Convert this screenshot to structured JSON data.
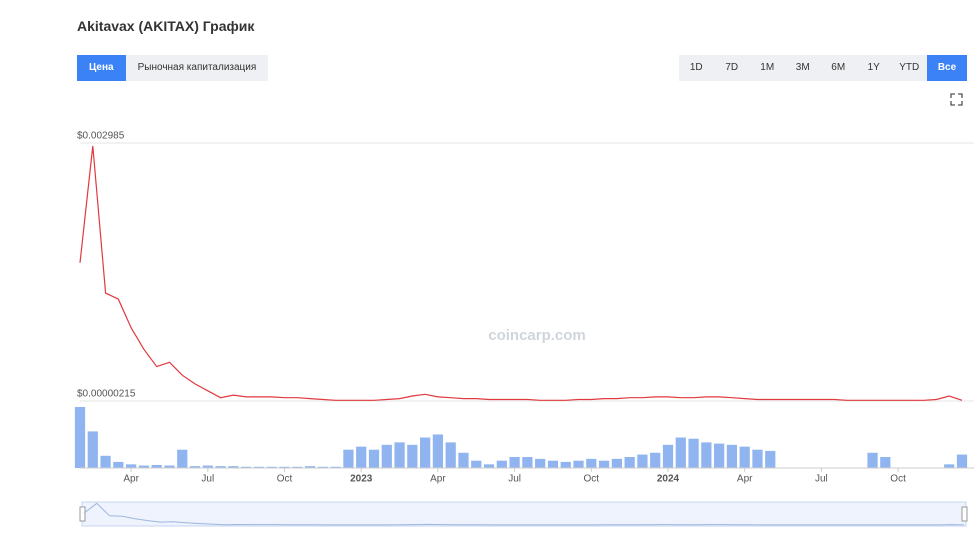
{
  "header": {
    "title": "Akitavax (AKITAX) График",
    "tabs": [
      "Цена",
      "Рыночная капитализация"
    ],
    "ranges": [
      "1D",
      "7D",
      "1M",
      "3M",
      "6M",
      "1Y",
      "YTD",
      "Все"
    ]
  },
  "watermark": "coincarp.com",
  "chart_data": [
    {
      "type": "line",
      "color": "#e0393e",
      "grid": true,
      "ylim": [
        2.15e-06,
        0.002985
      ],
      "yticks": [
        {
          "value": 2.15e-06,
          "label": "$0.00000215"
        },
        {
          "value": 0.002985,
          "label": "$0.002985"
        }
      ],
      "values": [
        0.0016,
        0.00295,
        0.00125,
        0.00118,
        0.00085,
        0.0006,
        0.0004,
        0.00045,
        0.0003,
        0.0002,
        0.00012,
        4e-05,
        7e-05,
        5e-05,
        5e-05,
        5e-05,
        4e-05,
        4e-05,
        3e-05,
        2e-05,
        1e-05,
        1e-05,
        1e-05,
        1e-05,
        2e-05,
        3e-05,
        6e-05,
        8e-05,
        5e-05,
        4e-05,
        3e-05,
        3e-05,
        2e-05,
        2e-05,
        2e-05,
        2e-05,
        1e-05,
        1e-05,
        1e-05,
        2e-05,
        2e-05,
        3e-05,
        3e-05,
        4e-05,
        4e-05,
        5e-05,
        5e-05,
        4e-05,
        4e-05,
        5e-05,
        5e-05,
        4e-05,
        3e-05,
        2e-05,
        2e-05,
        2e-05,
        2e-05,
        2e-05,
        2e-05,
        2e-05,
        1e-05,
        1e-05,
        1e-05,
        1e-05,
        1e-05,
        1e-05,
        1e-05,
        2e-05,
        6e-05,
        1e-05
      ]
    },
    {
      "type": "bar",
      "color": "#8fb4ef",
      "ylim": [
        0,
        100
      ],
      "categories": [
        null,
        null,
        null,
        null,
        "Apr",
        null,
        null,
        null,
        null,
        null,
        "Jul",
        null,
        null,
        null,
        null,
        null,
        "Oct",
        null,
        null,
        null,
        null,
        null,
        "2023",
        null,
        null,
        null,
        null,
        null,
        "Apr",
        null,
        null,
        null,
        null,
        null,
        "Jul",
        null,
        null,
        null,
        null,
        null,
        "Oct",
        null,
        null,
        null,
        null,
        null,
        "2024",
        null,
        null,
        null,
        null,
        null,
        "Apr",
        null,
        null,
        null,
        null,
        null,
        "Jul",
        null,
        null,
        null,
        null,
        null,
        "Oct",
        null,
        null,
        null,
        null,
        null
      ],
      "values": [
        100,
        60,
        20,
        10,
        6,
        4,
        5,
        4,
        30,
        3,
        4,
        3,
        3,
        2,
        2,
        2,
        2,
        2,
        3,
        2,
        2,
        30,
        35,
        30,
        38,
        42,
        38,
        50,
        55,
        42,
        25,
        12,
        6,
        12,
        18,
        18,
        15,
        12,
        10,
        12,
        15,
        12,
        15,
        18,
        22,
        25,
        38,
        50,
        48,
        42,
        40,
        38,
        35,
        30,
        28,
        0,
        0,
        0,
        0,
        0,
        0,
        0,
        25,
        18,
        0,
        0,
        0,
        0,
        6,
        22
      ]
    }
  ]
}
